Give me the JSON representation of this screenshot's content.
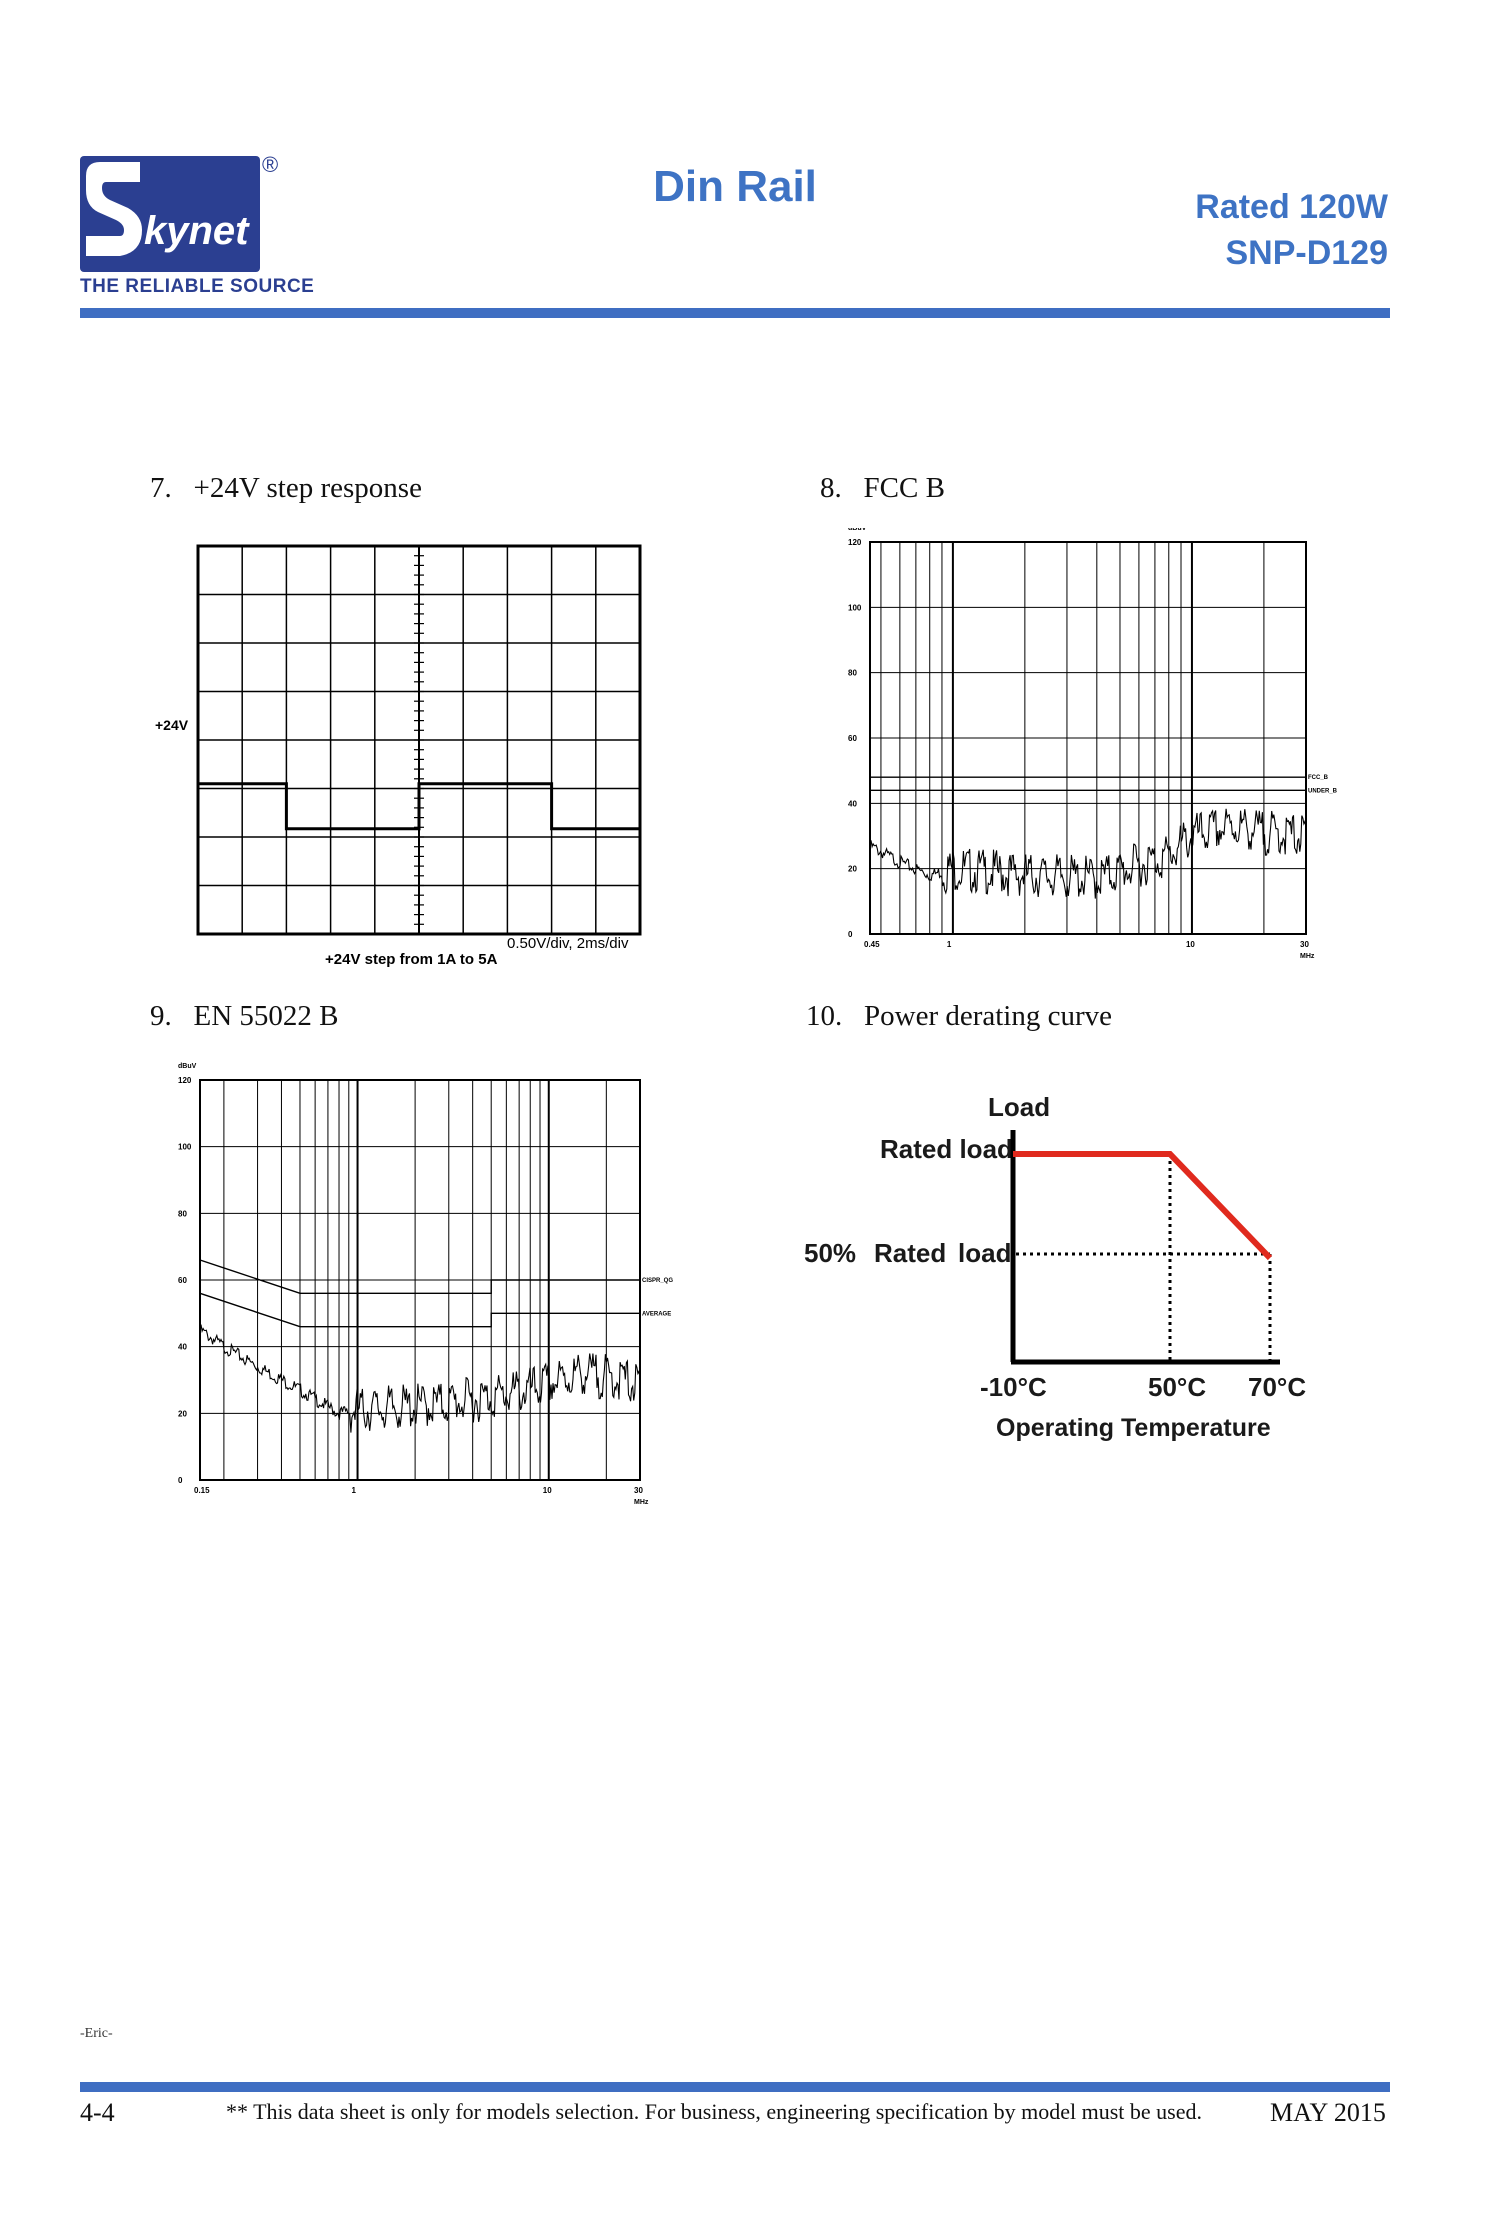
{
  "header": {
    "brand": "kynet",
    "brand_initial": "S",
    "registered_mark": "®",
    "tagline": "THE RELIABLE SOURCE",
    "title": "Din Rail",
    "rating": "Rated 120W",
    "model": "SNP-D129"
  },
  "sections": {
    "step": {
      "number": "7.",
      "title": "+24V step response",
      "level_label": "+24V",
      "scale_label": "0.50V/div, 2ms/div",
      "caption": "+24V step from 1A to 5A"
    },
    "fcc": {
      "number": "8.",
      "title": "FCC B",
      "y_unit": "dBuV",
      "x_unit": "MHz",
      "y_ticks": [
        "120",
        "100",
        "80",
        "60",
        "40",
        "20",
        "0"
      ],
      "x_ticks": [
        "0.45",
        "1",
        "10",
        "30"
      ],
      "limit_labels": [
        "FCC_B",
        "UNDER_B"
      ]
    },
    "en": {
      "number": "9.",
      "title": "EN 55022 B",
      "y_unit": "dBuV",
      "x_unit": "MHz",
      "y_ticks": [
        "120",
        "100",
        "80",
        "60",
        "40",
        "20",
        "0"
      ],
      "x_ticks": [
        "0.15",
        "1",
        "10",
        "30"
      ],
      "limit_labels": [
        "CISPR_QG",
        "AVERAGE"
      ]
    },
    "derating": {
      "number": "10.",
      "title": "Power derating curve",
      "y_axis": "Load",
      "rated_load": "Rated load",
      "half_load_pct": "50%",
      "half_load_word1": "Rated",
      "half_load_word2": "load",
      "x_ticks": [
        "-10°C",
        "50°C",
        "70°C"
      ],
      "x_axis": "Operating Temperature",
      "curve_color": "#e02a1e"
    }
  },
  "chart_data": [
    {
      "type": "line",
      "title": "+24V step response",
      "series": [
        {
          "values": [
            0.5,
            0.5,
            0.35,
            0.35,
            0.5,
            0.5,
            0.35,
            0.35
          ]
        }
      ],
      "x": [
        0,
        1.0,
        1.0,
        2.5,
        2.5,
        4.0,
        4.0,
        5.0
      ],
      "xlabel": "2ms/div",
      "ylabel": "0.50V/div"
    },
    {
      "type": "line",
      "title": "FCC B",
      "ylabel": "dBuV",
      "xlabel": "MHz",
      "x_scale": "log",
      "xlim": [
        0.45,
        30
      ],
      "ylim": [
        0,
        120
      ],
      "series": [
        {
          "name": "FCC_B",
          "x": [
            0.45,
            30
          ],
          "values": [
            48,
            48
          ]
        },
        {
          "name": "UNDER_B",
          "x": [
            0.45,
            30
          ],
          "values": [
            44,
            44
          ]
        },
        {
          "x": [
            0.45,
            0.6,
            0.8,
            1,
            2,
            4,
            8,
            10,
            15,
            20,
            30
          ],
          "values": [
            27,
            22,
            18,
            20,
            18,
            17,
            24,
            30,
            33,
            31,
            30
          ]
        }
      ]
    },
    {
      "type": "line",
      "title": "EN 55022 B",
      "ylabel": "dBuV",
      "xlabel": "MHz",
      "x_scale": "log",
      "xlim": [
        0.15,
        30
      ],
      "ylim": [
        0,
        120
      ],
      "series": [
        {
          "name": "CISPR_QG",
          "x": [
            0.15,
            0.5,
            5,
            5,
            30
          ],
          "values": [
            66,
            56,
            56,
            60,
            60
          ]
        },
        {
          "name": "AVERAGE",
          "x": [
            0.15,
            0.5,
            5,
            5,
            30
          ],
          "values": [
            56,
            46,
            46,
            50,
            50
          ]
        },
        {
          "x": [
            0.15,
            0.2,
            0.3,
            0.5,
            0.8,
            1,
            2,
            4,
            8,
            15,
            25,
            30
          ],
          "values": [
            45,
            40,
            34,
            27,
            20,
            21,
            22,
            24,
            27,
            32,
            30,
            28
          ]
        }
      ]
    },
    {
      "type": "line",
      "title": "Power derating curve",
      "ylabel": "Load",
      "xlabel": "Operating Temperature",
      "x": [
        -10,
        50,
        70
      ],
      "series": [
        {
          "values": [
            100,
            100,
            50
          ]
        }
      ]
    }
  ],
  "footer": {
    "author": "-Eric-",
    "page": "4-4",
    "disclaimer": "** This data sheet is only for models selection.  For business, engineering specification by model must be used.",
    "date": "MAY  2015"
  }
}
